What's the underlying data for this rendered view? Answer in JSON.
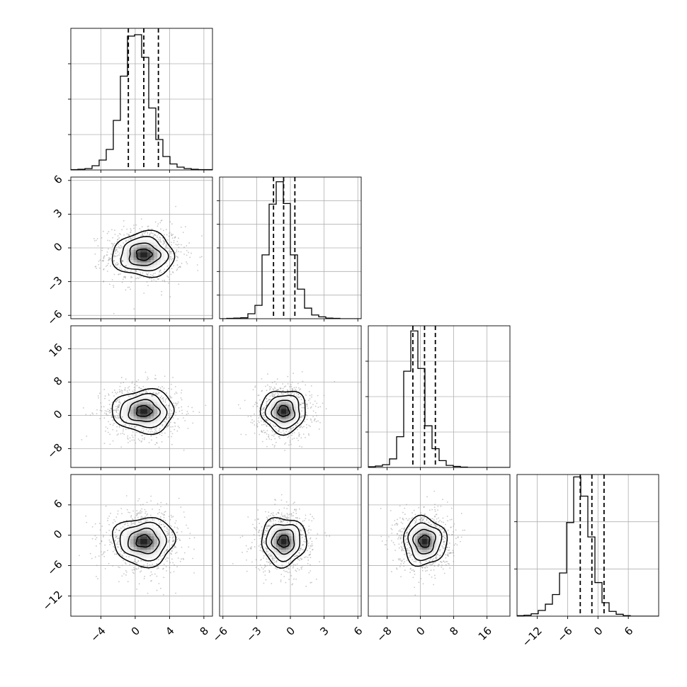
{
  "chart_data": {
    "type": "corner",
    "grid": true,
    "quantiles": [
      0.16,
      0.5,
      0.84
    ],
    "colors": {
      "line": "#000000",
      "grid": "#b0b0b0",
      "scatter": "#9a9a9a",
      "frame": "#000000"
    },
    "parameters": [
      {
        "name": "",
        "range": [
          -7.5,
          9.0
        ],
        "ticks": [
          -4,
          0,
          4,
          8
        ],
        "tick_labels": [
          "−4",
          "0",
          "4",
          "8"
        ],
        "quantile_values": [
          -0.8,
          1.0,
          2.7
        ],
        "hist_edges_start": -7.5,
        "hist_bin_width": 0.825,
        "hist_counts": [
          1,
          2,
          4,
          12,
          28,
          58,
          140,
          265,
          378,
          382,
          318,
          175,
          86,
          38,
          17,
          8,
          4,
          2,
          1,
          1
        ],
        "hist_ymax": 400
      },
      {
        "name": "",
        "range": [
          -6.3,
          6.3
        ],
        "ticks": [
          -6,
          -3,
          0,
          3,
          6
        ],
        "tick_labels": [
          "−6",
          "−3",
          "0",
          "3",
          "6"
        ],
        "quantile_values": [
          -1.5,
          -0.6,
          0.4
        ],
        "hist_edges_start": -6.3,
        "hist_bin_width": 0.63,
        "hist_counts": [
          0,
          1,
          2,
          3,
          16,
          43,
          205,
          368,
          440,
          370,
          205,
          95,
          34,
          12,
          6,
          2,
          1,
          0,
          0,
          0
        ],
        "hist_ymax": 455
      },
      {
        "name": "",
        "range": [
          -12.5,
          21.5
        ],
        "ticks": [
          -8,
          0,
          8,
          16
        ],
        "tick_labels": [
          "−8",
          "0",
          "8",
          "16"
        ],
        "quantile_values": [
          -1.8,
          1.0,
          3.6
        ],
        "hist_edges_start": -12.5,
        "hist_bin_width": 1.7,
        "hist_counts": [
          2,
          4,
          8,
          25,
          90,
          282,
          400,
          290,
          122,
          55,
          20,
          6,
          3,
          1,
          0,
          0,
          0,
          0,
          0,
          0
        ],
        "hist_ymax": 415
      },
      {
        "name": "",
        "range": [
          -16.0,
          12.0
        ],
        "ticks": [
          -12,
          -6,
          0,
          6
        ],
        "tick_labels": [
          "−12",
          "−6",
          "0",
          "6"
        ],
        "quantile_values": [
          -3.5,
          -1.2,
          1.2
        ],
        "hist_edges_start": -16.0,
        "hist_bin_width": 1.4,
        "hist_counts": [
          1,
          2,
          5,
          12,
          25,
          45,
          90,
          195,
          290,
          250,
          165,
          70,
          28,
          10,
          4,
          1,
          0,
          0,
          0,
          0
        ],
        "hist_ymax": 295
      }
    ],
    "y_axis_ticks": [
      {
        "row": 0,
        "ticks": [
          100,
          200,
          300
        ],
        "tick_labels": []
      },
      {
        "row": 1,
        "ticks": [
          -6,
          -3,
          0,
          3,
          6
        ],
        "tick_labels": [
          "−6",
          "−3",
          "0",
          "3",
          "6"
        ]
      },
      {
        "row": 2,
        "ticks": [
          -8,
          0,
          8,
          16
        ],
        "tick_labels": [
          "−8",
          "0",
          "8",
          "16"
        ]
      },
      {
        "row": 3,
        "ticks": [
          -12,
          -6,
          0,
          6
        ],
        "tick_labels": [
          "−12",
          "−6",
          "0",
          "6"
        ]
      }
    ],
    "means": [
      1.0,
      -0.6,
      1.0,
      -1.2
    ],
    "sds": [
      1.8,
      1.0,
      2.6,
      2.4
    ],
    "contour_levels_sigma": [
      0.5,
      1.0,
      1.5,
      2.0
    ]
  }
}
